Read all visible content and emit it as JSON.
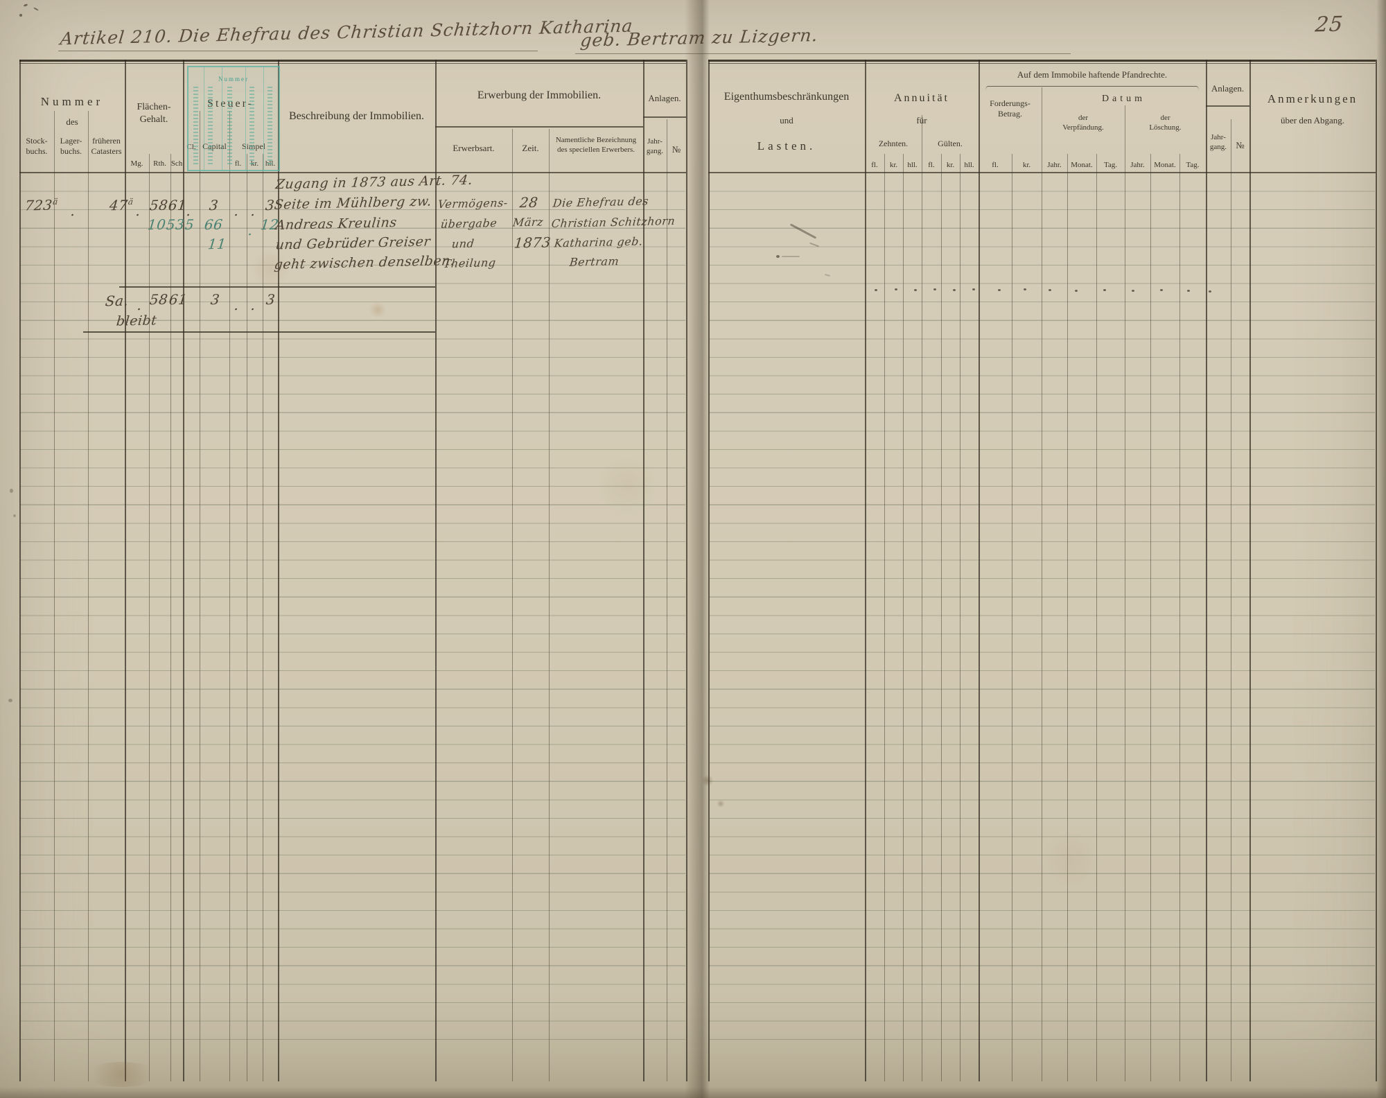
{
  "page_number": "25",
  "title": {
    "part1": "Artikel 210. Die Ehefrau des Christian Schitzhorn Katharina",
    "part2": "geb. Bertram zu Lizgern."
  },
  "stamp": {
    "label": "Nummer"
  },
  "left_header": {
    "nummer_1": "Nummer",
    "nummer_2": "des",
    "flaechen": "Flächen-\nGehalt.",
    "steuer": "Steuer-",
    "stock": "Stock-\nbuchs.",
    "lager": "Lager-\nbuchs.",
    "cataster": "früheren\nCatasters",
    "mg": "Mg.",
    "rth": "Rth.",
    "sch": "Sch",
    "cl": "Cl.",
    "capital": "Capital",
    "simpel": "Simpel",
    "beschreibung": "Beschreibung der Immobilien.",
    "erwerbung": "Erwerbung der Immobilien.",
    "anlagen": "Anlagen.",
    "erwerbsart": "Erwerbsart.",
    "zeit": "Zeit.",
    "namentlich": "Namentliche Bezeichnung\ndes speciellen Erwerbers.",
    "jahrgang": "Jahr-\ngang.",
    "nr": "№"
  },
  "units": {
    "fl": "fl.",
    "kr": "kr.",
    "hll": "hll.",
    "jahr": "Jahr.",
    "monat": "Monat.",
    "tag": "Tag."
  },
  "right_header": {
    "eigenthum_1": "Eigenthumsbeschränkungen",
    "eigenthum_2": "und",
    "eigenthum_3": "Lasten.",
    "annuitaet_1": "Annuität",
    "annuitaet_2": "für",
    "zehnten": "Zehnten.",
    "guelten": "Gülten.",
    "pfandrechte": "Auf dem Immobile haftende Pfandrechte.",
    "forderung": "Forderungs-\nBetrag.",
    "datum": "Datum",
    "verpfaendung": "der\nVerpfändung.",
    "loeschung": "der\nLöschung.",
    "anlagen": "Anlagen.",
    "jahrgang": "Jahr-\ngang.",
    "nr": "№",
    "anmerkungen_1": "Anmerkungen",
    "anmerkungen_2": "über den Abgang."
  },
  "entries": {
    "zugang": "Zugang in 1873 aus Art. 74.",
    "stock_nr": "723",
    "stock_sup": "ä",
    "lager_dot": ".",
    "cataster_nr": "47",
    "cataster_sup": "ä",
    "mg_dot": ".",
    "rth_1": "58",
    "sch_1": "61",
    "cl_dot": ".",
    "capital_1": "3",
    "fl_1": ".",
    "kr_1": ".",
    "hll_1": "3",
    "g_rth": "10",
    "g_sch": "53",
    "g_cl": "5",
    "g_capital": "66",
    "g_kr": ".",
    "g_hll": "12",
    "g_capital_2": "11",
    "beschr_2": "Seite im Mühlberg zw.",
    "beschr_3": "Andreas Kreulins",
    "beschr_4": "und Gebrüder Greiser",
    "beschr_5": "geht zwischen denselben.",
    "erwerbsart_1": "Vermögens-",
    "erwerbsart_2": "übergabe",
    "erwerbsart_3": "und",
    "erwerbsart_4": "Theilung",
    "zeit_1": "28",
    "zeit_2": "März",
    "zeit_3": "1873",
    "name_1": "Die Ehefrau des",
    "name_2": "Christian Schitzhorn",
    "name_3": "Katharina geb.",
    "name_4": "Bertram",
    "sa": "Sa.",
    "sa_dot": ".",
    "sa_rth": "58",
    "sa_sch": "61",
    "sa_capital": "3",
    "sa_fl": ".",
    "sa_kr": ".",
    "sa_hll": "3",
    "bleibt": "bleibt"
  }
}
